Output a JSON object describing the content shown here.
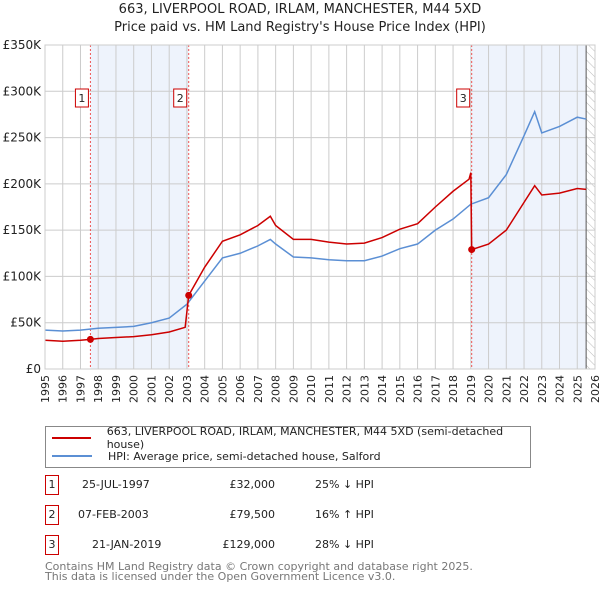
{
  "chart_data": {
    "type": "line",
    "title": "663, LIVERPOOL ROAD, IRLAM, MANCHESTER, M44 5XD",
    "subtitle": "Price paid vs. HM Land Registry's House Price Index (HPI)",
    "xlim": [
      1995,
      2026
    ],
    "ylim": [
      0,
      350000
    ],
    "y_ticks": [
      0,
      50000,
      100000,
      150000,
      200000,
      250000,
      300000,
      350000
    ],
    "y_tick_labels": [
      "£0",
      "£50K",
      "£100K",
      "£150K",
      "£200K",
      "£250K",
      "£300K",
      "£350K"
    ],
    "x_ticks": [
      1995,
      1996,
      1997,
      1998,
      1999,
      2000,
      2001,
      2002,
      2003,
      2004,
      2005,
      2006,
      2007,
      2008,
      2009,
      2010,
      2011,
      2012,
      2013,
      2014,
      2015,
      2016,
      2017,
      2018,
      2019,
      2020,
      2021,
      2022,
      2023,
      2024,
      2025,
      2026
    ],
    "grid": true,
    "series": [
      {
        "name": "663, LIVERPOOL ROAD, IRLAM, MANCHESTER, M44 5XD (semi-detached house)",
        "color": "#cc0000",
        "x": [
          1995,
          1996,
          1997,
          1997.56,
          1998,
          1999,
          2000,
          2001,
          2002,
          2002.9,
          2003.1,
          2004,
          2005,
          2006,
          2007,
          2007.7,
          2008,
          2009,
          2010,
          2011,
          2012,
          2013,
          2014,
          2015,
          2016,
          2017,
          2018,
          2018.9,
          2019.0,
          2019.05,
          2020,
          2021,
          2022,
          2022.6,
          2023,
          2024,
          2025,
          2025.5
        ],
        "y": [
          31000,
          30000,
          31000,
          32000,
          33000,
          34000,
          35000,
          37000,
          40000,
          45000,
          79500,
          110000,
          138000,
          145000,
          155000,
          165000,
          155000,
          140000,
          140000,
          137000,
          135000,
          136000,
          142000,
          151000,
          157000,
          175000,
          192000,
          205000,
          212000,
          129000,
          135000,
          150000,
          180000,
          198000,
          188000,
          190000,
          195000,
          194000
        ]
      },
      {
        "name": "HPI: Average price, semi-detached house, Salford",
        "color": "#5b8fd4",
        "x": [
          1995,
          1996,
          1997,
          1998,
          1999,
          2000,
          2001,
          2002,
          2003,
          2004,
          2005,
          2006,
          2007,
          2007.7,
          2008,
          2009,
          2010,
          2011,
          2012,
          2013,
          2014,
          2015,
          2016,
          2017,
          2018,
          2019,
          2020,
          2021,
          2022,
          2022.6,
          2023,
          2024,
          2025,
          2025.5
        ],
        "y": [
          42000,
          41000,
          42000,
          44000,
          45000,
          46000,
          50000,
          55000,
          70000,
          95000,
          120000,
          125000,
          133000,
          140000,
          135000,
          121000,
          120000,
          118000,
          117000,
          117000,
          122000,
          130000,
          135000,
          150000,
          162000,
          178000,
          185000,
          210000,
          252000,
          278000,
          255000,
          262000,
          272000,
          270000
        ]
      }
    ],
    "sales": [
      {
        "n": "1",
        "x": 1997.56,
        "y": 32000,
        "date": "25-JUL-1997",
        "price": "£32,000",
        "hpi": "25% ↓ HPI"
      },
      {
        "n": "2",
        "x": 2003.1,
        "y": 79500,
        "date": "07-FEB-2003",
        "price": "£79,500",
        "hpi": "16% ↑ HPI"
      },
      {
        "n": "3",
        "x": 2019.05,
        "y": 129000,
        "date": "21-JAN-2019",
        "price": "£129,000",
        "hpi": "28% ↓ HPI"
      }
    ],
    "shaded": [
      [
        1997.56,
        2003.1
      ],
      [
        2019.05,
        2025.5
      ]
    ],
    "hatched_from": 2025.5
  },
  "footer": [
    "Contains HM Land Registry data © Crown copyright and database right 2025.",
    "This data is licensed under the Open Government Licence v3.0."
  ]
}
